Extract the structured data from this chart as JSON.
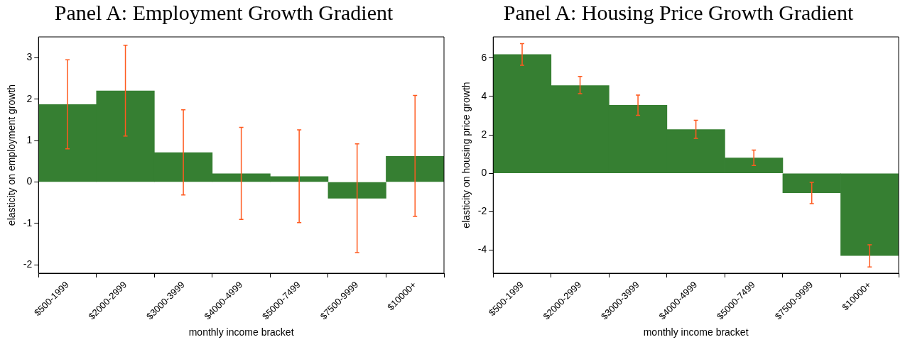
{
  "chart_data": [
    {
      "type": "bar",
      "title": "Panel A: Employment Growth Gradient",
      "xlabel": "monthly income bracket",
      "ylabel": "elasticity on employment growth",
      "categories": [
        "$500-1999",
        "$2000-2999",
        "$3000-3999",
        "$4000-4999",
        "$5000-7499",
        "$7500-9999",
        "$10000+"
      ],
      "series": [
        {
          "color": "#367f32",
          "values": [
            1.87,
            2.2,
            0.71,
            0.2,
            0.13,
            -0.39,
            0.62
          ],
          "errors": [
            [
              0.8,
              2.95
            ],
            [
              1.11,
              3.3
            ],
            [
              -0.31,
              1.74
            ],
            [
              -0.9,
              1.32
            ],
            [
              -0.98,
              1.26
            ],
            [
              -1.7,
              0.92
            ],
            [
              -0.83,
              2.09
            ]
          ]
        }
      ],
      "ylim": [
        -2.2,
        3.5
      ],
      "yticks": [
        -2,
        -1,
        0,
        1,
        2,
        3
      ],
      "grid": false,
      "legend": false
    },
    {
      "type": "bar",
      "title": "Panel A: Housing Price Growth Gradient",
      "xlabel": "monthly income bracket",
      "ylabel": "elasticity on housing price growth",
      "categories": [
        "$500-1999",
        "$2000-2999",
        "$3000-3999",
        "$4000-4999",
        "$5000-7499",
        "$7500-9999",
        "$10000+"
      ],
      "series": [
        {
          "color": "#367f32",
          "values": [
            6.18,
            4.57,
            3.54,
            2.28,
            0.8,
            -1.01,
            -4.28
          ],
          "errors": [
            [
              5.62,
              6.75
            ],
            [
              4.15,
              5.04
            ],
            [
              3.02,
              4.07
            ],
            [
              1.82,
              2.76
            ],
            [
              0.41,
              1.21
            ],
            [
              -1.58,
              -0.47
            ],
            [
              -4.87,
              -3.72
            ]
          ]
        }
      ],
      "ylim": [
        -5.2,
        7.1
      ],
      "yticks": [
        -4,
        -2,
        0,
        2,
        4,
        6
      ],
      "grid": false,
      "legend": false
    }
  ]
}
